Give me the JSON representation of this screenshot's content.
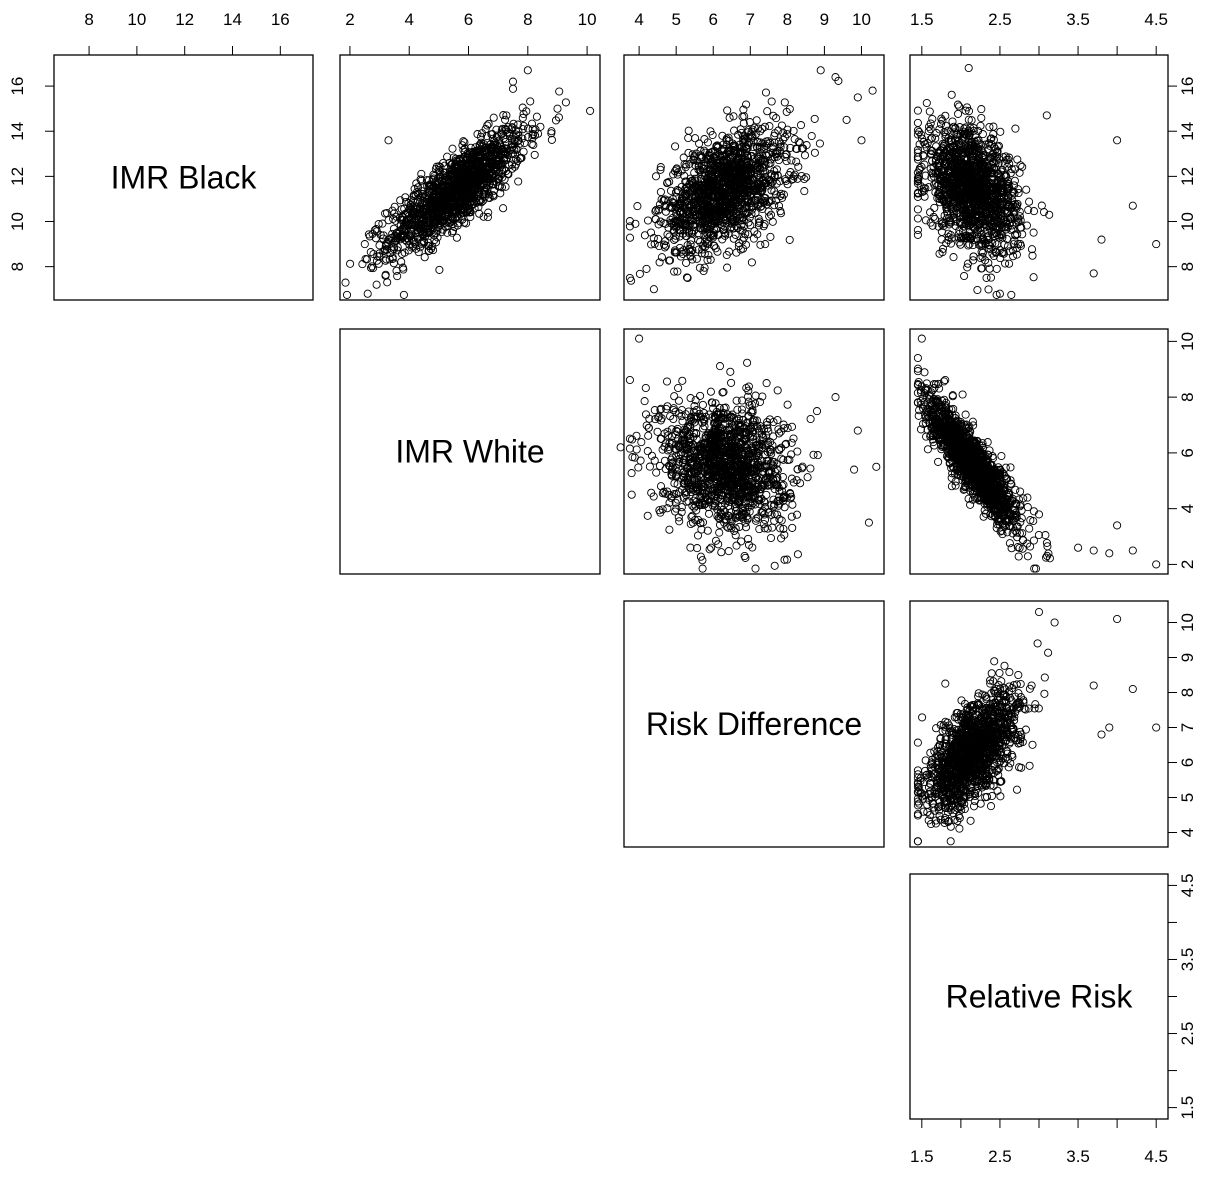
{
  "chart_data": {
    "type": "scatter",
    "layout": "pairs-upper-triangle",
    "variables": [
      {
        "label": "IMR Black",
        "range": [
          6.7,
          17.2
        ],
        "ticks": [
          8,
          10,
          12,
          14,
          16
        ],
        "tick_labels": [
          "8",
          "10",
          "12",
          "14",
          "16"
        ]
      },
      {
        "label": "IMR White",
        "range": [
          1.8,
          10.3
        ],
        "ticks": [
          2,
          4,
          6,
          8,
          10
        ],
        "tick_labels": [
          "2",
          "4",
          "6",
          "8",
          "10"
        ]
      },
      {
        "label": "Risk Difference",
        "range": [
          3.7,
          10.5
        ],
        "ticks": [
          4,
          5,
          6,
          7,
          8,
          9,
          10
        ],
        "tick_labels": [
          "4",
          "5",
          "6",
          "7",
          "8",
          "9",
          "10"
        ]
      },
      {
        "label": "Relative Risk",
        "range": [
          1.4,
          4.6
        ],
        "ticks": [
          1.5,
          2.0,
          2.5,
          3.0,
          3.5,
          4.0,
          4.5
        ],
        "tick_labels": [
          "1.5",
          "",
          "2.5",
          "",
          "3.5",
          "",
          "4.5"
        ]
      }
    ],
    "series": [
      {
        "x_var": "IMR White",
        "y_var": "IMR Black",
        "n_points": 1400,
        "mean": [
          5.6,
          11.4
        ],
        "sd": [
          1.15,
          1.35
        ],
        "correlation": 0.82,
        "outliers": [
          [
            10.1,
            14.9
          ],
          [
            9.0,
            15.0
          ],
          [
            8.0,
            16.7
          ],
          [
            7.5,
            16.2
          ],
          [
            3.3,
            13.6
          ],
          [
            2.5,
            9.0
          ],
          [
            2.9,
            7.2
          ],
          [
            2.6,
            6.8
          ],
          [
            8.8,
            14.0
          ]
        ]
      },
      {
        "x_var": "Risk Difference",
        "y_var": "IMR Black",
        "n_points": 1400,
        "mean": [
          6.3,
          11.4
        ],
        "sd": [
          0.85,
          1.35
        ],
        "correlation": 0.45,
        "outliers": [
          [
            10.3,
            15.8
          ],
          [
            9.9,
            15.5
          ],
          [
            9.3,
            16.4
          ],
          [
            8.9,
            16.7
          ],
          [
            10.0,
            13.6
          ],
          [
            3.9,
            9.9
          ],
          [
            4.4,
            7.0
          ],
          [
            4.2,
            7.9
          ],
          [
            9.6,
            14.5
          ]
        ]
      },
      {
        "x_var": "Relative Risk",
        "y_var": "IMR Black",
        "n_points": 1400,
        "mean": [
          2.15,
          11.4
        ],
        "sd": [
          0.3,
          1.35
        ],
        "correlation": -0.35,
        "outliers": [
          [
            4.5,
            9.0
          ],
          [
            4.0,
            13.6
          ],
          [
            4.2,
            10.7
          ],
          [
            3.7,
            7.7
          ],
          [
            3.8,
            9.2
          ],
          [
            3.1,
            14.7
          ],
          [
            2.5,
            6.8
          ],
          [
            2.1,
            16.8
          ]
        ]
      },
      {
        "x_var": "Risk Difference",
        "y_var": "IMR White",
        "n_points": 1400,
        "mean": [
          6.3,
          5.6
        ],
        "sd": [
          0.85,
          1.15
        ],
        "correlation": -0.15,
        "outliers": [
          [
            4.0,
            10.1
          ],
          [
            3.5,
            6.2
          ],
          [
            3.8,
            4.5
          ],
          [
            10.4,
            5.5
          ],
          [
            10.2,
            3.5
          ],
          [
            9.8,
            5.4
          ],
          [
            9.3,
            8.0
          ],
          [
            8.8,
            7.5
          ],
          [
            9.9,
            6.8
          ]
        ]
      },
      {
        "x_var": "Relative Risk",
        "y_var": "IMR White",
        "n_points": 1400,
        "mean": [
          2.15,
          5.6
        ],
        "sd": [
          0.3,
          1.15
        ],
        "correlation": -0.88,
        "outliers": [
          [
            1.5,
            10.1
          ],
          [
            4.5,
            2.0
          ],
          [
            4.2,
            2.5
          ],
          [
            4.0,
            3.4
          ],
          [
            3.9,
            2.4
          ],
          [
            3.7,
            2.5
          ],
          [
            3.5,
            2.6
          ]
        ]
      },
      {
        "x_var": "Relative Risk",
        "y_var": "Risk Difference",
        "n_points": 1400,
        "mean": [
          2.15,
          6.3
        ],
        "sd": [
          0.3,
          0.85
        ],
        "correlation": 0.62,
        "outliers": [
          [
            4.5,
            7.0
          ],
          [
            4.2,
            8.1
          ],
          [
            4.0,
            10.1
          ],
          [
            3.0,
            10.3
          ],
          [
            3.2,
            10.0
          ],
          [
            3.7,
            8.2
          ],
          [
            3.9,
            7.0
          ],
          [
            3.8,
            6.8
          ]
        ]
      }
    ],
    "xlabel": "",
    "ylabel": "",
    "title": "",
    "grid": false,
    "legend": "none"
  }
}
